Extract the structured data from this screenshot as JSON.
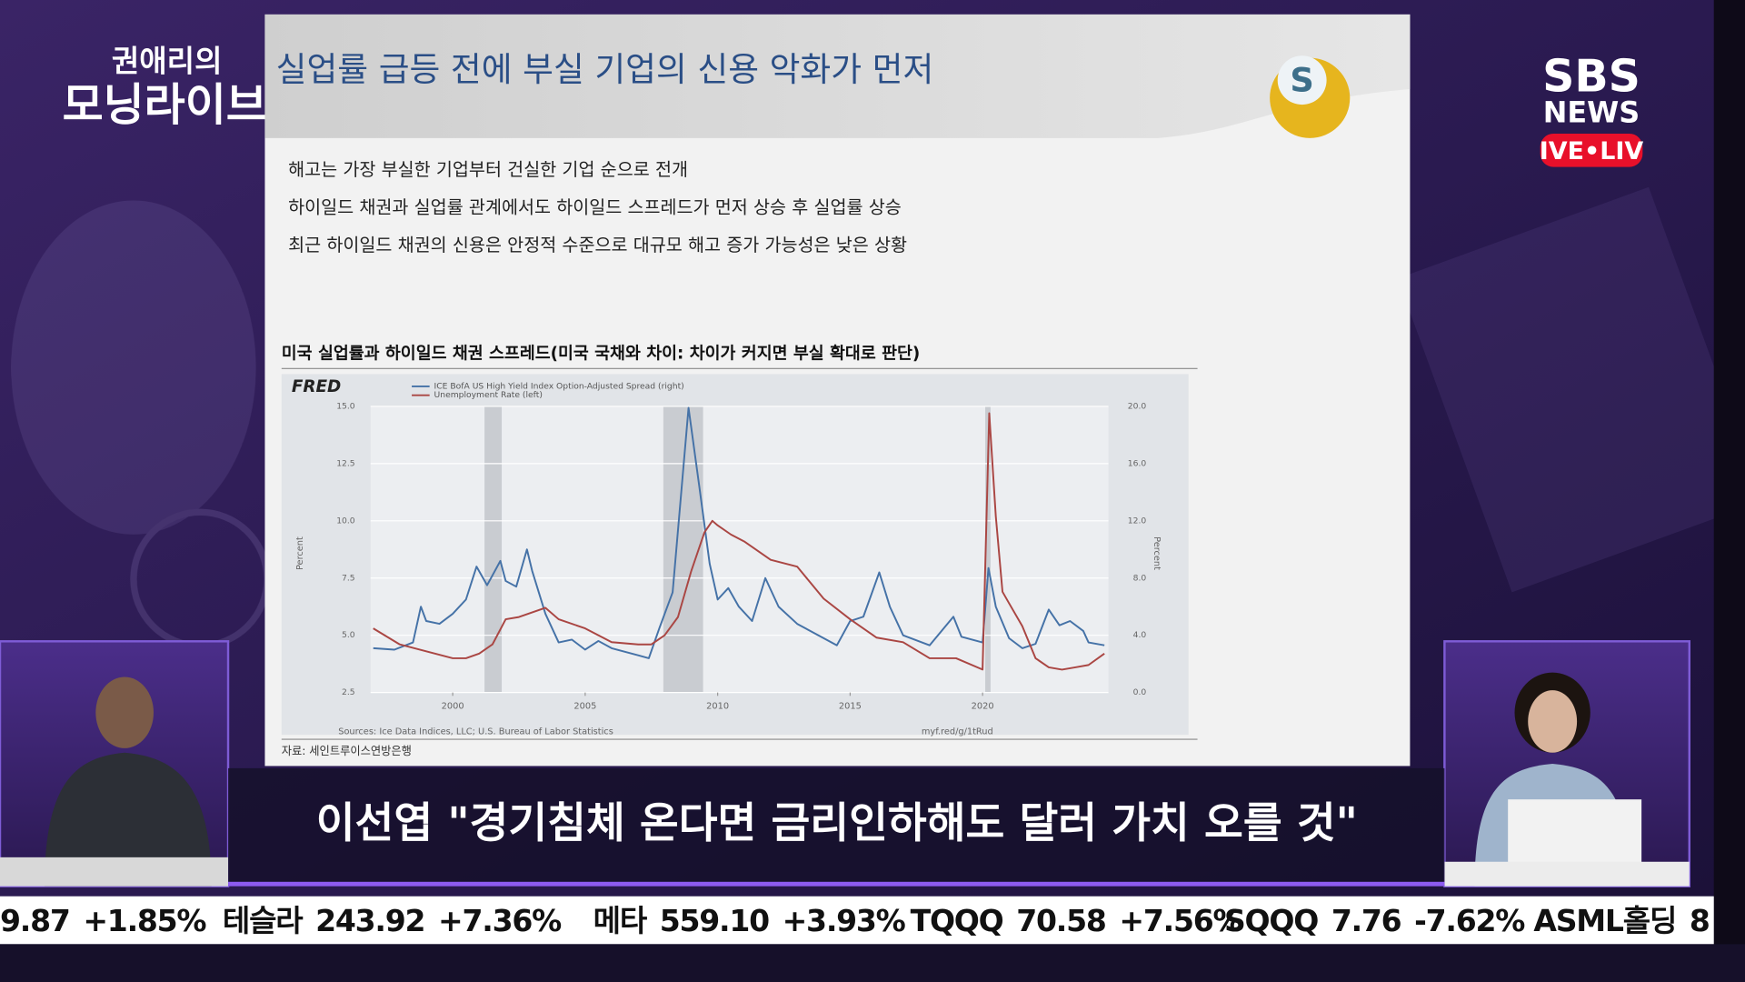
{
  "program": {
    "title_top": "권애리의",
    "title_main": "모닝라이브"
  },
  "network": {
    "brand": "SBS",
    "sub": "NEWS",
    "live": "IVE•LIV"
  },
  "slide": {
    "title": "실업률 급등 전에 부실 기업의 신용 악화가 먼저",
    "bullets": [
      "해고는 가장 부실한 기업부터 건실한 기업 순으로 전개",
      "하이일드 채권과 실업률 관계에서도 하이일드 스프레드가 먼저 상승 후 실업률 상승",
      "최근 하이일드 채권의 신용은 안정적 수준으로 대규모 해고 증가 가능성은 낮은 상황"
    ],
    "chart_heading": "미국 실업률과 하이일드 채권 스프레드(미국 국채와 차이: 차이가 커지면 부실 확대로 판단)",
    "source_note": "자료: 세인트루이스연방은행"
  },
  "chart_data": {
    "type": "line",
    "logo": "FRED",
    "left_axis_label": "Percent",
    "right_axis_label": "Percent",
    "sources": "Sources: Ice Data Indices, LLC; U.S. Bureau of Labor Statistics",
    "url": "myf.red/g/1tRud",
    "xlim": [
      1996.9,
      2024.75
    ],
    "xticks": [
      2000,
      2005,
      2010,
      2015,
      2020
    ],
    "ylim": [
      2.5,
      15
    ],
    "yticks": [
      {
        "value": 2.5,
        "label": "2.5"
      },
      {
        "value": 5,
        "label": "5.0"
      },
      {
        "value": 7.5,
        "label": "7.5"
      },
      {
        "value": 10,
        "label": "10.0"
      },
      {
        "value": 12.5,
        "label": "12.5"
      },
      {
        "value": 15,
        "label": "15.0"
      }
    ],
    "y2lim": [
      0,
      20
    ],
    "y2ticks": [
      {
        "value": 0,
        "label": "0.0"
      },
      {
        "value": 4,
        "label": "4.0"
      },
      {
        "value": 8,
        "label": "8.0"
      },
      {
        "value": 12,
        "label": "12.0"
      },
      {
        "value": 16,
        "label": "16.0"
      },
      {
        "value": 20,
        "label": "20.0"
      }
    ],
    "grid": true,
    "recessions": [
      [
        2001.2,
        2001.85
      ],
      [
        2007.95,
        2009.45
      ],
      [
        2020.1,
        2020.3
      ]
    ],
    "series": [
      {
        "name": "ICE BofA US High Yield Index Option-Adjusted Spread (right)",
        "color": "#4572a7",
        "axis": "y2",
        "x": [
          1997,
          1997.8,
          1998.5,
          1998.8,
          1999,
          1999.5,
          2000,
          2000.5,
          2000.9,
          2001.3,
          2001.8,
          2002,
          2002.4,
          2002.8,
          2003,
          2003.5,
          2004,
          2004.5,
          2005,
          2005.5,
          2006,
          2007,
          2007.4,
          2007.8,
          2008.3,
          2008.9,
          2009.3,
          2009.7,
          2010,
          2010.4,
          2010.8,
          2011.3,
          2011.8,
          2012.3,
          2013,
          2014,
          2014.5,
          2015,
          2015.5,
          2016.1,
          2016.5,
          2017,
          2018,
          2018.9,
          2019.2,
          2020,
          2020.22,
          2020.5,
          2021,
          2021.5,
          2022,
          2022.5,
          2022.9,
          2023.3,
          2023.8,
          2024,
          2024.6
        ],
        "values": [
          3.1,
          3.0,
          3.5,
          6.0,
          5.0,
          4.8,
          5.5,
          6.5,
          8.8,
          7.5,
          9.2,
          7.8,
          7.4,
          10.0,
          8.5,
          5.5,
          3.5,
          3.7,
          3.0,
          3.6,
          3.1,
          2.6,
          2.4,
          4.5,
          7.0,
          19.9,
          14.5,
          9.0,
          6.5,
          7.3,
          6.0,
          5.0,
          8.0,
          6.0,
          4.8,
          3.8,
          3.3,
          5.0,
          5.3,
          8.4,
          6.0,
          4.0,
          3.3,
          5.3,
          3.9,
          3.5,
          8.7,
          6.0,
          3.8,
          3.1,
          3.4,
          5.8,
          4.7,
          5.0,
          4.3,
          3.5,
          3.3
        ]
      },
      {
        "name": "Unemployment Rate (left)",
        "color": "#aa4643",
        "axis": "y",
        "x": [
          1997,
          1998,
          1999,
          2000,
          2000.5,
          2001,
          2001.5,
          2002,
          2002.5,
          2003.5,
          2004,
          2005,
          2006,
          2007,
          2007.5,
          2008,
          2008.5,
          2009,
          2009.5,
          2009.8,
          2010,
          2010.5,
          2011,
          2012,
          2013,
          2014,
          2015,
          2016,
          2017,
          2018,
          2019,
          2020,
          2020.25,
          2020.5,
          2020.75,
          2021,
          2021.5,
          2022,
          2022.5,
          2023,
          2023.5,
          2024,
          2024.6
        ],
        "values": [
          5.3,
          4.6,
          4.3,
          4.0,
          4.0,
          4.2,
          4.6,
          5.7,
          5.8,
          6.2,
          5.7,
          5.3,
          4.7,
          4.6,
          4.6,
          5.0,
          5.8,
          7.8,
          9.5,
          10.0,
          9.8,
          9.4,
          9.1,
          8.3,
          8.0,
          6.6,
          5.7,
          4.9,
          4.7,
          4.0,
          4.0,
          3.5,
          14.7,
          10.2,
          6.9,
          6.4,
          5.4,
          4.0,
          3.6,
          3.5,
          3.6,
          3.7,
          4.2
        ]
      }
    ]
  },
  "caption": "이선엽 \"경기침체 온다면 금리인하해도 달러 가치 오를 것\"",
  "ticker": [
    {
      "price": "9.87",
      "change": "+1.85%"
    },
    {
      "name": "테슬라",
      "price": "243.92",
      "change": "+7.36%"
    },
    {
      "name": "메타",
      "price": "559.10",
      "change": "+3.93%"
    },
    {
      "name": "TQQQ",
      "price": "70.58",
      "change": "+7.56%"
    },
    {
      "name": "SQQQ",
      "price": "7.76",
      "change": "-7.62%"
    },
    {
      "name": "ASML홀딩",
      "price": "8"
    }
  ]
}
